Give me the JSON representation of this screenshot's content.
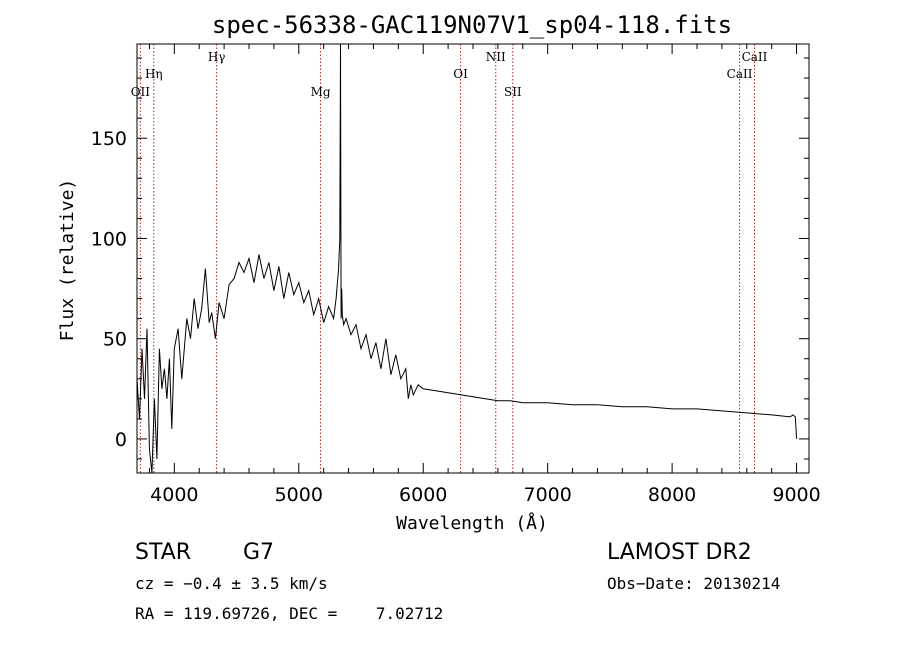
{
  "chart_data": {
    "type": "line",
    "title": "spec-56338-GAC119N07V1_sp04-118.fits",
    "xlabel": "Wavelength (Å)",
    "ylabel": "Flux (relative)",
    "xlim": [
      3700,
      9100
    ],
    "ylim": [
      -17,
      197
    ],
    "xticks": [
      "4000",
      "5000",
      "6000",
      "7000",
      "8000",
      "9000"
    ],
    "xtick_values": [
      4000,
      5000,
      6000,
      7000,
      8000,
      9000
    ],
    "yticks": [
      "0",
      "50",
      "100",
      "150"
    ],
    "ytick_values": [
      0,
      50,
      100,
      150
    ],
    "grid": false,
    "series": [
      {
        "x": [
          3700,
          3720,
          3740,
          3760,
          3780,
          3800,
          3820,
          3840,
          3860,
          3880,
          3900,
          3920,
          3940,
          3960,
          3980,
          4000,
          4030,
          4060,
          4100,
          4130,
          4160,
          4190,
          4220,
          4250,
          4280,
          4300,
          4330,
          4360,
          4400,
          4440,
          4480,
          4520,
          4560,
          4600,
          4640,
          4680,
          4720,
          4760,
          4800,
          4840,
          4880,
          4920,
          4960,
          5000,
          5040,
          5080,
          5120,
          5160,
          5200,
          5240,
          5280,
          5300,
          5320,
          5330,
          5335,
          5340,
          5345,
          5350,
          5360,
          5380,
          5420,
          5460,
          5500,
          5540,
          5580,
          5620,
          5660,
          5700,
          5740,
          5780,
          5820,
          5860,
          5880,
          5900,
          5920,
          5960,
          6000,
          6100,
          6200,
          6300,
          6400,
          6500,
          6600,
          6700,
          6800,
          6900,
          7000,
          7200,
          7400,
          7600,
          7800,
          8000,
          8200,
          8400,
          8600,
          8800,
          8950,
          8970,
          8990,
          9000
        ],
        "y": [
          30,
          10,
          45,
          20,
          55,
          -5,
          -17,
          20,
          -10,
          45,
          25,
          35,
          20,
          40,
          5,
          45,
          55,
          30,
          60,
          50,
          70,
          55,
          65,
          85,
          58,
          63,
          50,
          68,
          60,
          77,
          80,
          88,
          83,
          90,
          78,
          92,
          80,
          88,
          74,
          86,
          70,
          83,
          72,
          78,
          68,
          74,
          62,
          70,
          58,
          66,
          60,
          70,
          85,
          100,
          197,
          60,
          75,
          62,
          57,
          60,
          52,
          57,
          45,
          52,
          40,
          48,
          35,
          50,
          32,
          42,
          30,
          35,
          20,
          27,
          22,
          27,
          25,
          24,
          23,
          22,
          21,
          20,
          19,
          19,
          18,
          18,
          18,
          17,
          17,
          16,
          16,
          15,
          15,
          14,
          13,
          12,
          11,
          12,
          11,
          0
        ]
      }
    ],
    "lines": [
      {
        "label": "OII",
        "x": 3727,
        "row": 2
      },
      {
        "label": "Hη",
        "x": 3835,
        "row": 1
      },
      {
        "label": "Hγ",
        "x": 4340,
        "row": 0
      },
      {
        "label": "Mg",
        "x": 5175,
        "row": 2
      },
      {
        "label": "OI",
        "x": 6300,
        "row": 1
      },
      {
        "label": "NII",
        "x": 6583,
        "row": 0
      },
      {
        "label": "SII",
        "x": 6720,
        "row": 2
      },
      {
        "label": "CaII",
        "x": 8542,
        "row": 1
      },
      {
        "label": "CaII",
        "x": 8662,
        "row": 0
      }
    ]
  },
  "info": {
    "class_label": "STAR",
    "subclass": "G7",
    "cz": "cz = −0.4 ± 3.5 km/s",
    "radec": "RA = 119.69726, DEC =    7.02712",
    "survey": "LAMOST DR2",
    "obs_date": "Obs−Date: 20130214"
  },
  "colors": {
    "line_marker": "#b22222",
    "spectrum": "#000000"
  }
}
